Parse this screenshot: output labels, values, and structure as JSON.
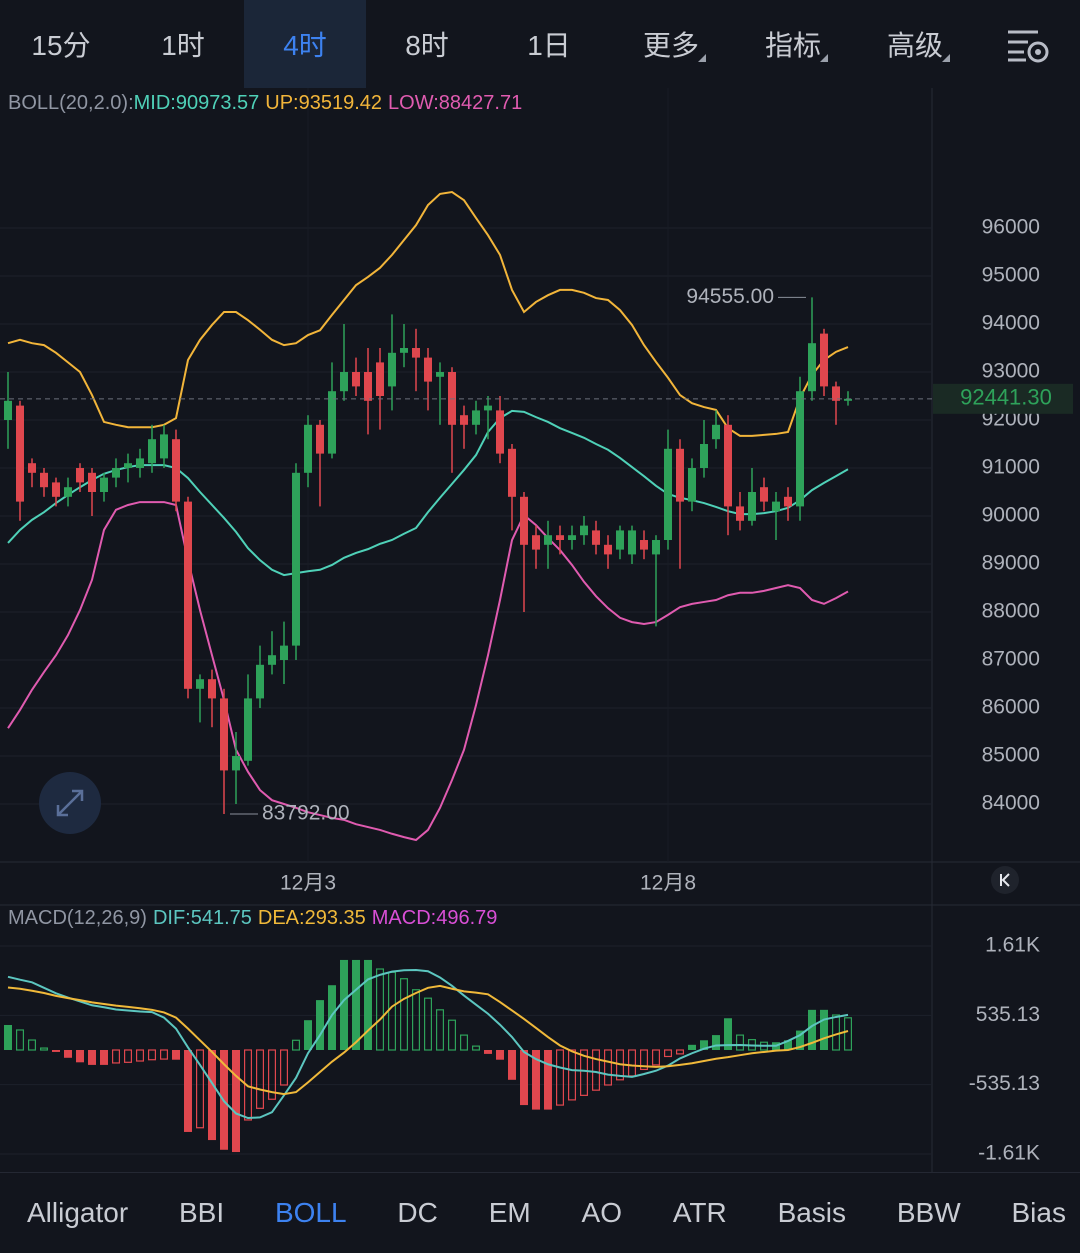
{
  "timeframe_tabs": {
    "items": [
      "15分",
      "1时",
      "4时",
      "8时",
      "1日",
      "更多",
      "指标",
      "高级"
    ],
    "selected_index": 2
  },
  "indicator_tabs": {
    "items": [
      "Alligator",
      "BBI",
      "BOLL",
      "DC",
      "EM",
      "AO",
      "ATR",
      "Basis",
      "BBW",
      "Bias"
    ],
    "selected_index": 2
  },
  "chart_data": [
    {
      "type": "candlestick",
      "title": "BOLL(20,2.0):",
      "up_color": "#2ea25a",
      "down_color": "#e0474e",
      "categories": [
        null,
        null,
        null,
        null,
        null,
        null,
        null,
        null,
        null,
        null,
        null,
        null,
        null,
        null,
        null,
        null,
        null,
        null,
        null,
        null,
        null,
        null,
        null,
        null,
        null,
        "12月3",
        null,
        null,
        null,
        null,
        null,
        null,
        null,
        null,
        null,
        null,
        null,
        null,
        null,
        null,
        null,
        null,
        null,
        null,
        null,
        null,
        null,
        null,
        null,
        null,
        null,
        null,
        null,
        null,
        null,
        "12月8",
        null,
        null,
        null,
        null,
        null,
        null,
        null,
        null,
        null,
        null,
        null,
        null,
        null,
        null,
        null
      ],
      "open": [
        92000,
        92300,
        91100,
        90900,
        90700,
        90400,
        91000,
        90900,
        90500,
        90800,
        91000,
        91000,
        91100,
        91200,
        91600,
        90300,
        86400,
        86600,
        86200,
        84700,
        84900,
        86200,
        86900,
        87000,
        87300,
        90900,
        91900,
        91300,
        92600,
        93000,
        93000,
        93200,
        92700,
        93400,
        93500,
        93300,
        92900,
        93000,
        92100,
        91900,
        92200,
        92200,
        91400,
        90400,
        89600,
        89400,
        89600,
        89500,
        89600,
        89700,
        89400,
        89300,
        89200,
        89500,
        89200,
        89500,
        91400,
        90300,
        91000,
        91600,
        91900,
        90200,
        89900,
        90600,
        90100,
        90400,
        90200,
        92600,
        93800,
        92700,
        92400
      ],
      "high": [
        93000,
        92400,
        91200,
        91000,
        90800,
        90800,
        91100,
        91000,
        90900,
        91200,
        91300,
        91400,
        91900,
        91900,
        91800,
        90400,
        86700,
        86800,
        86400,
        85500,
        86700,
        87300,
        87600,
        87800,
        91100,
        92100,
        92000,
        93200,
        94000,
        93300,
        93500,
        93500,
        94200,
        94000,
        93900,
        93500,
        93200,
        93100,
        92300,
        92400,
        92500,
        92500,
        91500,
        90500,
        89800,
        89900,
        89800,
        89800,
        90000,
        89900,
        89600,
        89800,
        89800,
        89700,
        89600,
        91800,
        91600,
        91200,
        92000,
        92200,
        92100,
        90500,
        91000,
        90800,
        90500,
        90600,
        92900,
        94555,
        93900,
        92800,
        92600
      ],
      "low": [
        91400,
        89900,
        90600,
        90400,
        90200,
        90200,
        90500,
        90000,
        90300,
        90600,
        90700,
        90800,
        90900,
        91000,
        90100,
        86200,
        85700,
        85600,
        83792,
        84000,
        84800,
        86000,
        86700,
        86500,
        87000,
        90600,
        90200,
        91200,
        92400,
        92500,
        91700,
        91800,
        92200,
        93100,
        92600,
        92200,
        91900,
        90900,
        91400,
        91700,
        91600,
        91100,
        89700,
        88000,
        88900,
        88900,
        89200,
        89300,
        89400,
        89200,
        88900,
        89100,
        89000,
        89100,
        87700,
        89300,
        88900,
        90100,
        90800,
        91400,
        89600,
        89700,
        89800,
        90100,
        89500,
        89900,
        89900,
        92400,
        92500,
        91900,
        92300
      ],
      "close": [
        92400,
        90300,
        90900,
        90600,
        90400,
        90600,
        90700,
        90500,
        90800,
        91000,
        91100,
        91200,
        91600,
        91700,
        90300,
        86400,
        86600,
        86200,
        84700,
        85000,
        86200,
        86900,
        87100,
        87300,
        90900,
        91900,
        91300,
        92600,
        93000,
        92700,
        92400,
        92500,
        93400,
        93500,
        93300,
        92800,
        93000,
        91900,
        91900,
        92200,
        92300,
        91300,
        90400,
        89400,
        89300,
        89600,
        89500,
        89600,
        89800,
        89400,
        89200,
        89700,
        89700,
        89300,
        89500,
        91400,
        90300,
        91000,
        91500,
        91900,
        90200,
        89900,
        90500,
        90300,
        90300,
        90200,
        92600,
        93600,
        92700,
        92400,
        92441.3
      ],
      "series": [
        {
          "name": "MID:90973.57",
          "color": "#4fd1b8",
          "values": [
            89440,
            89710,
            89920,
            90080,
            90270,
            90440,
            90600,
            90750,
            90880,
            90960,
            91020,
            91060,
            91060,
            91060,
            91000,
            90790,
            90500,
            90230,
            89960,
            89670,
            89330,
            89080,
            88880,
            88770,
            88810,
            88850,
            88880,
            88980,
            89130,
            89230,
            89310,
            89420,
            89500,
            89630,
            89750,
            90080,
            90380,
            90670,
            90960,
            91270,
            91750,
            92040,
            92190,
            92170,
            92060,
            91960,
            91830,
            91730,
            91630,
            91500,
            91380,
            91210,
            91020,
            90830,
            90630,
            90460,
            90380,
            90330,
            90270,
            90190,
            90100,
            90040,
            90040,
            90060,
            90100,
            90170,
            90330,
            90540,
            90690,
            90830,
            90973.57
          ]
        },
        {
          "name": "UP:93519.42",
          "color": "#f2b53a",
          "values": [
            93600,
            93670,
            93600,
            93560,
            93400,
            93200,
            93000,
            92520,
            91960,
            91900,
            91850,
            91850,
            91850,
            91900,
            92040,
            93250,
            93670,
            93980,
            94250,
            94250,
            94080,
            93880,
            93670,
            93560,
            93600,
            93770,
            93870,
            94190,
            94500,
            94810,
            94980,
            95170,
            95440,
            95750,
            96060,
            96480,
            96710,
            96750,
            96580,
            96210,
            95850,
            95440,
            94710,
            94250,
            94460,
            94600,
            94710,
            94710,
            94650,
            94540,
            94500,
            94290,
            93980,
            93560,
            93210,
            92880,
            92520,
            92350,
            92270,
            92210,
            91830,
            91670,
            91670,
            91690,
            91710,
            91750,
            92460,
            92940,
            93250,
            93420,
            93519.42
          ]
        },
        {
          "name": "LOW:88427.71",
          "color": "#e05bb0",
          "values": [
            85580,
            85960,
            86380,
            86750,
            87100,
            87520,
            88040,
            88670,
            89710,
            90130,
            90230,
            90290,
            90290,
            90290,
            90230,
            89080,
            88040,
            87100,
            86170,
            85130,
            84670,
            84290,
            84080,
            84000,
            83920,
            83830,
            83770,
            83710,
            83670,
            83580,
            83520,
            83460,
            83380,
            83310,
            83250,
            83460,
            83920,
            84500,
            85130,
            86060,
            87100,
            88250,
            89500,
            90020,
            89810,
            89540,
            89290,
            88980,
            88630,
            88330,
            88080,
            87880,
            87790,
            87750,
            87790,
            87940,
            88100,
            88170,
            88210,
            88250,
            88350,
            88400,
            88400,
            88440,
            88500,
            88560,
            88500,
            88250,
            88170,
            88290,
            88427.71
          ]
        }
      ],
      "annotations": [
        {
          "value": 94555,
          "label": "94555.00"
        },
        {
          "value": 83792,
          "label": "83792.00"
        }
      ],
      "last_price": {
        "value": 92441.3,
        "label": "92441.30"
      },
      "ylim": [
        82792,
        98875
      ],
      "yticks": [
        84000,
        85000,
        86000,
        87000,
        88000,
        89000,
        90000,
        91000,
        92000,
        93000,
        94000,
        95000,
        96000
      ],
      "grid": true
    },
    {
      "type": "macd",
      "title": "MACD(12,26,9)",
      "series": [
        {
          "name": "DIF:541.75",
          "color": "#5cc6c0",
          "values": [
            1130,
            1085,
            1045,
            960,
            875,
            810,
            750,
            690,
            660,
            625,
            610,
            595,
            585,
            500,
            330,
            40,
            -230,
            -510,
            -790,
            -980,
            -1050,
            -1040,
            -960,
            -700,
            -430,
            -50,
            230,
            540,
            770,
            930,
            1090,
            1160,
            1210,
            1230,
            1235,
            1215,
            1120,
            990,
            840,
            700,
            560,
            390,
            200,
            -30,
            -140,
            -220,
            -270,
            -310,
            -320,
            -340,
            -380,
            -400,
            -415,
            -370,
            -320,
            -240,
            -130,
            -50,
            20,
            70,
            75,
            77,
            70,
            65,
            65,
            140,
            230,
            370,
            470,
            510,
            541.75
          ]
        },
        {
          "name": "DEA:293.35",
          "color": "#f0b93a",
          "values": [
            965,
            945,
            915,
            880,
            835,
            800,
            770,
            735,
            710,
            685,
            665,
            645,
            620,
            580,
            500,
            330,
            150,
            -30,
            -220,
            -400,
            -560,
            -610,
            -650,
            -680,
            -650,
            -500,
            -340,
            -180,
            -40,
            120,
            300,
            470,
            670,
            790,
            880,
            960,
            990,
            945,
            905,
            885,
            860,
            740,
            610,
            480,
            340,
            200,
            70,
            -20,
            -90,
            -140,
            -180,
            -220,
            -240,
            -250,
            -260,
            -250,
            -230,
            -205,
            -170,
            -135,
            -110,
            -80,
            -50,
            -30,
            -10,
            0,
            45,
            110,
            180,
            240,
            293.35
          ]
        }
      ],
      "histogram": {
        "name": "MACD:496.79",
        "color": "#d94fd6",
        "up_color": "#2ea25a",
        "down_color": "#e0474e",
        "values": [
          386,
          309,
          154,
          30,
          -30,
          -120,
          -190,
          -230,
          -230,
          -200,
          -190,
          -170,
          -150,
          -140,
          -150,
          -1265,
          -1200,
          -1390,
          -1540,
          -1575,
          -1080,
          -900,
          -760,
          -540,
          150,
          460,
          770,
          1000,
          1390,
          1390,
          1390,
          1250,
          1200,
          1100,
          930,
          800,
          620,
          460,
          230,
          60,
          -60,
          -150,
          -460,
          -850,
          -920,
          -920,
          -850,
          -770,
          -700,
          -620,
          -540,
          -460,
          -400,
          -300,
          -230,
          -100,
          -60,
          80,
          150,
          230,
          490,
          230,
          160,
          120,
          120,
          150,
          300,
          620,
          620,
          540,
          496.79
        ]
      },
      "ylim": [
        -1883,
        2238
      ],
      "yticks": [
        {
          "value": 1605.39,
          "label": "1.61K"
        },
        535.13,
        -535.13,
        {
          "value": -1605.39,
          "label": "-1.61K"
        }
      ],
      "grid": true
    }
  ]
}
